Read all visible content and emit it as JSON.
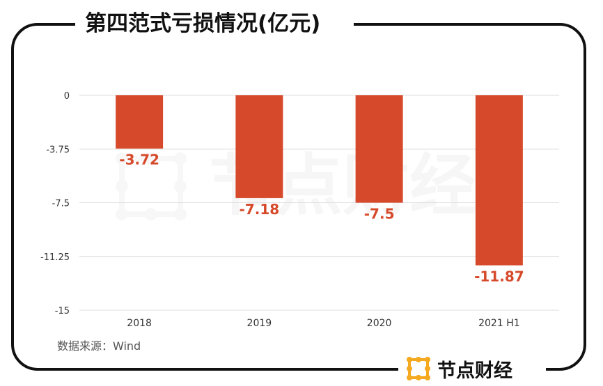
{
  "title": "第四范式亏损情况(亿元)",
  "source": "数据来源：Wind",
  "brand": {
    "name": "节点财经",
    "icon": "node-grid-logo-icon",
    "color": "#f4a91f"
  },
  "watermark": "节点财经",
  "colors": {
    "bar": "#d64a2b",
    "label": "#d64a2b",
    "axis_text": "#333333",
    "frame": "#111111"
  },
  "chart_data": {
    "type": "bar",
    "title": "第四范式亏损情况(亿元)",
    "categories": [
      "2018",
      "2019",
      "2020",
      "2021 H1"
    ],
    "values": [
      -3.72,
      -7.18,
      -7.5,
      -11.87
    ],
    "value_labels": [
      "-3.72",
      "-7.18",
      "-7.5",
      "-11.87"
    ],
    "yticks": [
      "0",
      "-3.75",
      "-7.5",
      "-11.25",
      "-15"
    ],
    "ylim": [
      -15,
      0
    ],
    "grid": true,
    "legend": "none"
  }
}
